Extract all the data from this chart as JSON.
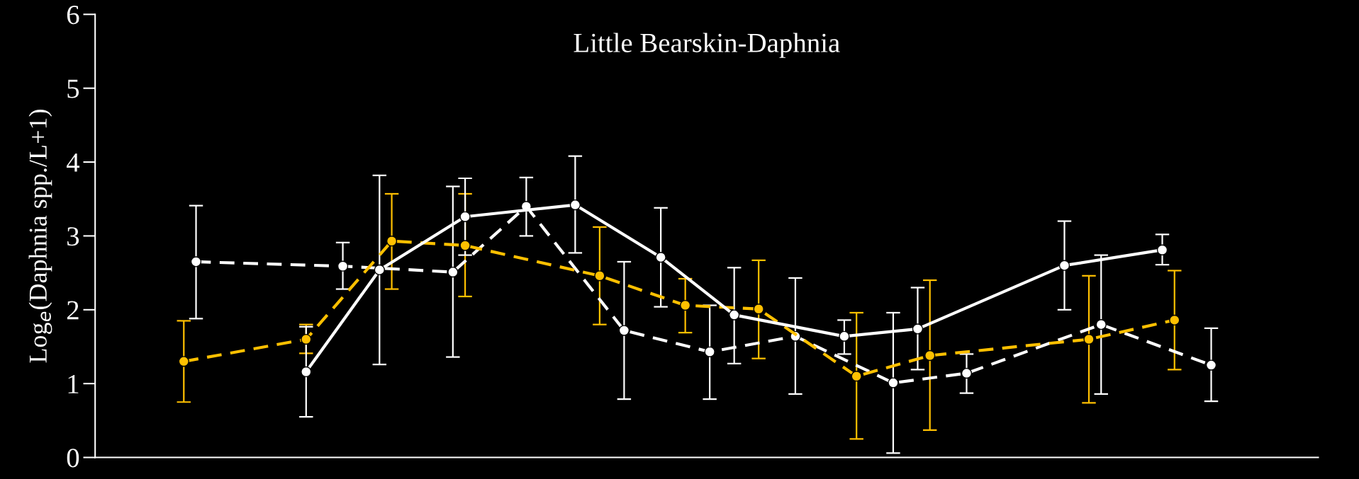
{
  "chart_data": {
    "type": "line",
    "title": "Little Bearskin-Daphnia",
    "ylabel": "Log$_{e}$(Daphnia spp./L+1)",
    "categories": [
      null,
      null,
      null,
      null,
      null,
      null,
      null,
      null,
      null,
      null,
      null,
      null,
      null,
      null,
      null,
      null,
      null,
      null,
      null,
      null,
      null,
      null,
      null,
      null,
      null,
      null,
      null,
      null,
      null,
      null,
      null,
      null,
      null,
      null,
      null,
      null,
      null,
      null,
      null,
      null,
      null,
      null,
      null,
      null,
      null,
      null,
      null,
      null,
      null,
      null,
      null,
      null,
      null,
      null,
      null,
      null,
      null,
      null,
      null,
      null,
      null,
      null,
      null,
      null,
      null,
      null,
      null,
      null,
      null,
      null,
      null,
      null,
      null,
      null,
      null,
      null,
      null,
      null,
      null,
      null,
      null,
      null,
      null,
      null,
      null,
      null,
      null,
      null,
      null,
      null,
      null,
      null,
      null,
      null,
      null,
      null,
      null,
      null,
      null,
      null
    ],
    "ylim": [
      0,
      6
    ],
    "yticks": [
      0,
      1,
      2,
      3,
      4,
      5,
      6
    ],
    "grid": false,
    "marker": "circle",
    "tick_labels": "y",
    "series": [
      {
        "color": "#ffffff",
        "line_style": "dashed",
        "values": [
          null,
          null,
          null,
          null,
          null,
          null,
          null,
          null,
          2.65,
          null,
          null,
          null,
          null,
          null,
          null,
          null,
          null,
          null,
          null,
          null,
          2.59,
          null,
          null,
          null,
          null,
          null,
          null,
          null,
          null,
          2.51,
          null,
          null,
          null,
          null,
          null,
          3.4,
          null,
          null,
          null,
          null,
          null,
          null,
          null,
          1.72,
          null,
          null,
          null,
          null,
          null,
          null,
          1.43,
          null,
          null,
          null,
          null,
          null,
          null,
          1.64,
          null,
          null,
          null,
          null,
          null,
          null,
          null,
          1.01,
          null,
          null,
          null,
          null,
          null,
          1.14,
          null,
          null,
          null,
          null,
          null,
          null,
          null,
          null,
          null,
          null,
          1.8,
          null,
          null,
          null,
          null,
          null,
          null,
          null,
          null,
          1.25,
          null,
          null,
          null,
          null,
          null,
          null,
          null,
          null
        ],
        "errors": [
          null,
          null,
          null,
          null,
          null,
          null,
          null,
          null,
          [
            1.88,
            3.41
          ],
          null,
          null,
          null,
          null,
          null,
          null,
          null,
          null,
          null,
          null,
          null,
          [
            2.28,
            2.91
          ],
          null,
          null,
          null,
          null,
          null,
          null,
          null,
          null,
          [
            1.36,
            3.67
          ],
          null,
          null,
          null,
          null,
          null,
          [
            3.0,
            3.79
          ],
          null,
          null,
          null,
          null,
          null,
          null,
          null,
          [
            0.79,
            2.65
          ],
          null,
          null,
          null,
          null,
          null,
          null,
          [
            0.79,
            2.06
          ],
          null,
          null,
          null,
          null,
          null,
          null,
          [
            0.86,
            2.43
          ],
          null,
          null,
          null,
          null,
          null,
          null,
          null,
          [
            0.06,
            1.96
          ],
          null,
          null,
          null,
          null,
          null,
          [
            0.87,
            1.4
          ],
          null,
          null,
          null,
          null,
          null,
          null,
          null,
          null,
          null,
          null,
          [
            0.86,
            2.74
          ],
          null,
          null,
          null,
          null,
          null,
          null,
          null,
          null,
          [
            0.76,
            1.75
          ],
          null,
          null,
          null,
          null,
          null,
          null,
          null,
          null
        ]
      },
      {
        "color": "#ffc000",
        "line_style": "dashed",
        "values": [
          null,
          null,
          null,
          null,
          null,
          null,
          null,
          1.3,
          null,
          null,
          null,
          null,
          null,
          null,
          null,
          null,
          null,
          1.6,
          null,
          null,
          null,
          null,
          null,
          null,
          2.93,
          null,
          null,
          null,
          null,
          null,
          2.87,
          null,
          null,
          null,
          null,
          null,
          null,
          null,
          null,
          null,
          null,
          2.46,
          null,
          null,
          null,
          null,
          null,
          null,
          2.06,
          null,
          null,
          null,
          null,
          null,
          2.01,
          null,
          null,
          null,
          null,
          null,
          null,
          null,
          1.1,
          null,
          null,
          null,
          null,
          null,
          1.38,
          null,
          null,
          null,
          null,
          null,
          null,
          null,
          null,
          null,
          null,
          null,
          null,
          1.6,
          null,
          null,
          null,
          null,
          null,
          null,
          1.86,
          null,
          null,
          null,
          null,
          null,
          null,
          null,
          null,
          null,
          null,
          null
        ],
        "errors": [
          null,
          null,
          null,
          null,
          null,
          null,
          null,
          [
            0.75,
            1.85
          ],
          null,
          null,
          null,
          null,
          null,
          null,
          null,
          null,
          null,
          [
            1.41,
            1.8
          ],
          null,
          null,
          null,
          null,
          null,
          null,
          [
            2.28,
            3.57
          ],
          null,
          null,
          null,
          null,
          null,
          [
            2.18,
            3.57
          ],
          null,
          null,
          null,
          null,
          null,
          null,
          null,
          null,
          null,
          null,
          [
            1.8,
            3.12
          ],
          null,
          null,
          null,
          null,
          null,
          null,
          [
            1.69,
            2.42
          ],
          null,
          null,
          null,
          null,
          null,
          [
            1.34,
            2.67
          ],
          null,
          null,
          null,
          null,
          null,
          null,
          null,
          [
            0.25,
            1.96
          ],
          null,
          null,
          null,
          null,
          null,
          [
            0.37,
            2.4
          ],
          null,
          null,
          null,
          null,
          null,
          null,
          null,
          null,
          null,
          null,
          null,
          null,
          [
            0.74,
            2.46
          ],
          null,
          null,
          null,
          null,
          null,
          null,
          [
            1.19,
            2.53
          ],
          null,
          null,
          null,
          null,
          null,
          null,
          null,
          null,
          null,
          null,
          null
        ]
      },
      {
        "color": "#ffffff",
        "line_style": "solid",
        "values": [
          null,
          null,
          null,
          null,
          null,
          null,
          null,
          null,
          null,
          null,
          null,
          null,
          null,
          null,
          null,
          null,
          null,
          1.16,
          null,
          null,
          null,
          null,
          null,
          2.54,
          null,
          null,
          null,
          null,
          null,
          null,
          3.26,
          null,
          null,
          null,
          null,
          null,
          null,
          null,
          null,
          3.42,
          null,
          null,
          null,
          null,
          null,
          null,
          2.71,
          null,
          null,
          null,
          null,
          null,
          1.93,
          null,
          null,
          null,
          null,
          null,
          null,
          null,
          null,
          1.64,
          null,
          null,
          null,
          null,
          null,
          1.74,
          null,
          null,
          null,
          null,
          null,
          null,
          null,
          null,
          null,
          null,
          null,
          2.6,
          null,
          null,
          null,
          null,
          null,
          null,
          null,
          2.81,
          null,
          null,
          null,
          null,
          null,
          null,
          null,
          null,
          null,
          null,
          null,
          null
        ],
        "errors": [
          null,
          null,
          null,
          null,
          null,
          null,
          null,
          null,
          null,
          null,
          null,
          null,
          null,
          null,
          null,
          null,
          null,
          [
            0.55,
            1.77
          ],
          null,
          null,
          null,
          null,
          null,
          [
            1.26,
            3.82
          ],
          null,
          null,
          null,
          null,
          null,
          null,
          [
            2.74,
            3.78
          ],
          null,
          null,
          null,
          null,
          null,
          null,
          null,
          null,
          [
            2.77,
            4.08
          ],
          null,
          null,
          null,
          null,
          null,
          null,
          [
            2.04,
            3.38
          ],
          null,
          null,
          null,
          null,
          null,
          [
            1.27,
            2.57
          ],
          null,
          null,
          null,
          null,
          null,
          null,
          null,
          null,
          [
            1.4,
            1.86
          ],
          null,
          null,
          null,
          null,
          null,
          [
            1.19,
            2.3
          ],
          null,
          null,
          null,
          null,
          null,
          null,
          null,
          null,
          null,
          null,
          null,
          [
            2.0,
            3.2
          ],
          null,
          null,
          null,
          null,
          null,
          null,
          null,
          [
            2.61,
            3.02
          ],
          null,
          null,
          null,
          null,
          null,
          null,
          null,
          null,
          null,
          null,
          null,
          null
        ]
      }
    ]
  }
}
